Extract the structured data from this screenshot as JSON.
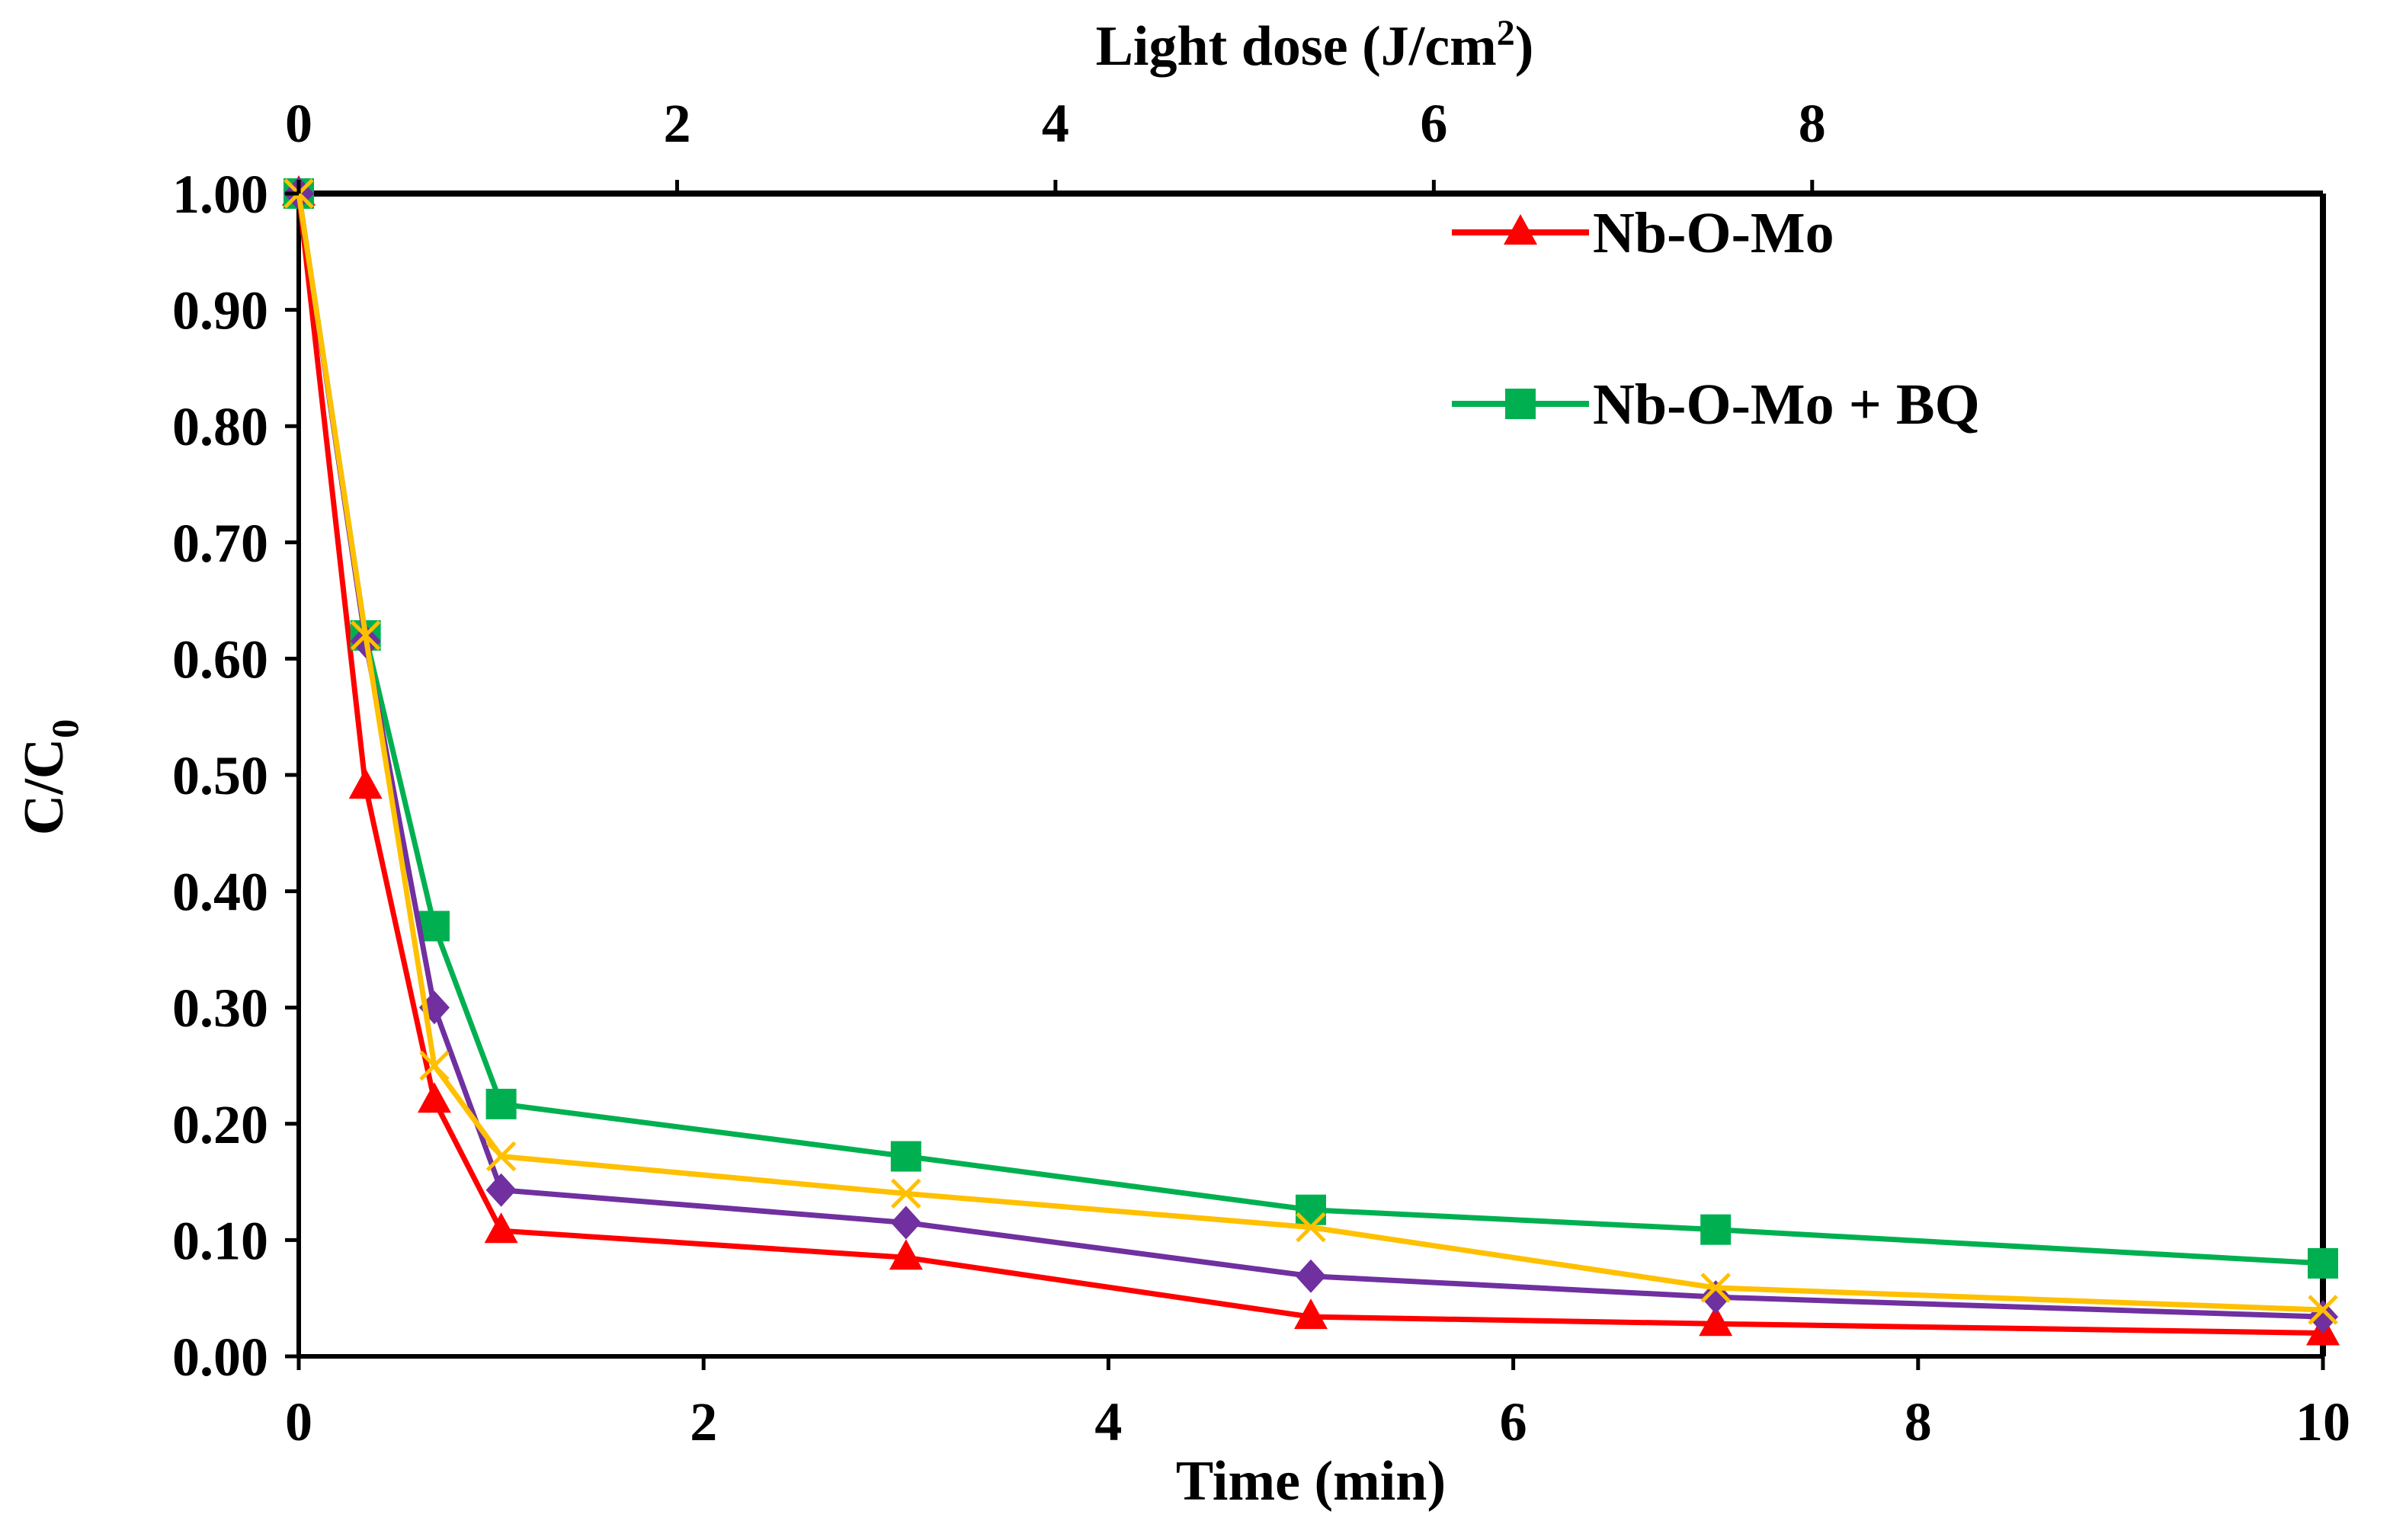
{
  "chart_data": {
    "type": "line",
    "xlabel": "Time (min)",
    "ylabel_main": "C/C",
    "ylabel_sub": "0",
    "top_axis_label_main": "Light dose (J/cm",
    "top_axis_label_sup": "2",
    "top_axis_label_end": ")",
    "xlim": [
      0,
      10
    ],
    "ylim": [
      0,
      1.0
    ],
    "top_xlim": [
      0,
      10.7
    ],
    "x_ticks": [
      0,
      2,
      4,
      6,
      8,
      10
    ],
    "x_tick_labels": [
      "0",
      "2",
      "4",
      "6",
      "8",
      "10"
    ],
    "y_ticks": [
      0,
      0.1,
      0.2,
      0.3,
      0.4,
      0.5,
      0.6,
      0.7,
      0.8,
      0.9,
      1.0
    ],
    "y_tick_labels": [
      "0.00",
      "0.10",
      "0.20",
      "0.30",
      "0.40",
      "0.50",
      "0.60",
      "0.70",
      "0.80",
      "0.90",
      "1.00"
    ],
    "top_ticks": [
      0,
      2,
      4,
      6,
      8
    ],
    "top_tick_labels": [
      "0",
      "2",
      "4",
      "6",
      "8"
    ],
    "x": [
      0,
      0.33,
      0.67,
      1,
      3,
      5,
      7,
      10
    ],
    "legend_position": "top-right",
    "series": [
      {
        "name": "Nb-O-Mo",
        "color": "#ff0000",
        "marker": "triangle",
        "in_legend": true,
        "values": [
          1.0,
          0.49,
          0.22,
          0.108,
          0.085,
          0.034,
          0.028,
          0.02
        ]
      },
      {
        "name": "Nb-O-Mo + BQ",
        "color": "#00b050",
        "marker": "square",
        "in_legend": true,
        "values": [
          1.0,
          0.62,
          0.37,
          0.217,
          0.172,
          0.126,
          0.109,
          0.08
        ]
      },
      {
        "name": "",
        "color": "#7030a0",
        "marker": "diamond",
        "in_legend": false,
        "values": [
          1.0,
          0.615,
          0.3,
          0.143,
          0.115,
          0.069,
          0.051,
          0.034
        ]
      },
      {
        "name": "",
        "color": "#ffc000",
        "marker": "x",
        "in_legend": false,
        "values": [
          1.0,
          0.62,
          0.25,
          0.172,
          0.14,
          0.111,
          0.059,
          0.04
        ]
      }
    ]
  }
}
